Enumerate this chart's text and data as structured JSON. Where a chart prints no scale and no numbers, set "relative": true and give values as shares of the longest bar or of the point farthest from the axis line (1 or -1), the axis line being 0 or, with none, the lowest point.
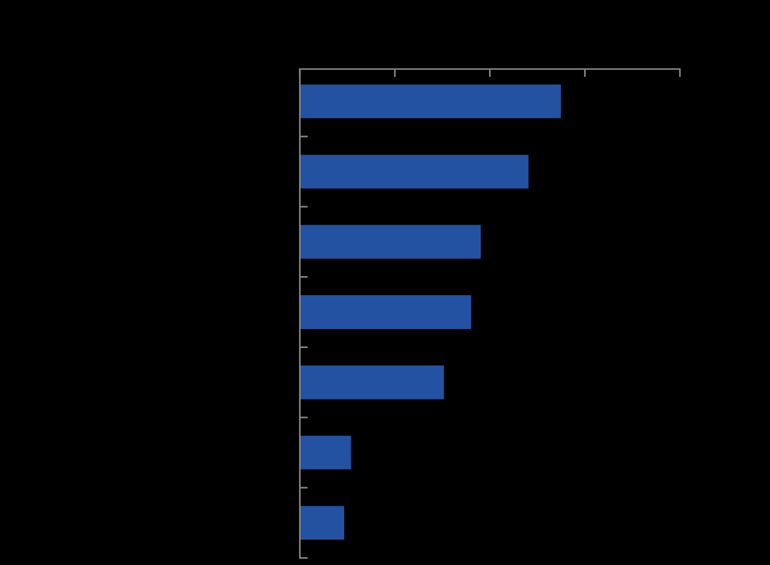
{
  "chart_data": {
    "type": "bar",
    "orientation": "horizontal",
    "relative": true,
    "categories": [
      null,
      null,
      null,
      null,
      null,
      null,
      null
    ],
    "values": [
      1,
      0.876,
      0.693,
      0.656,
      0.552,
      0.196,
      0.17
    ],
    "color": "#2452a2",
    "grid": false,
    "legend": false
  }
}
